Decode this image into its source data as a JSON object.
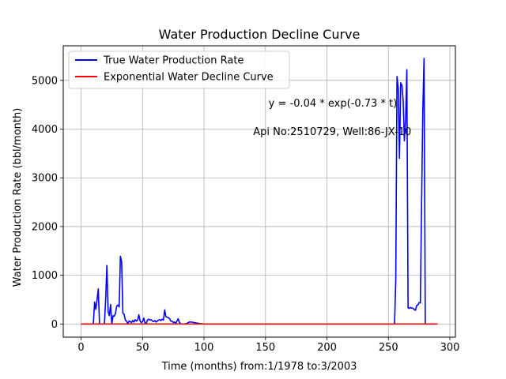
{
  "chart_data": {
    "type": "line",
    "title": "Water Production Decline Curve",
    "xlabel": "Time (months) from:1/1978 to:3/2003",
    "ylabel": "Water Production Rate (bbl/month)",
    "xlim": [
      -14.5,
      304.5
    ],
    "ylim": [
      -270,
      5710
    ],
    "xticks": [
      0,
      50,
      100,
      150,
      200,
      250,
      300
    ],
    "yticks": [
      0,
      1000,
      2000,
      3000,
      4000,
      5000
    ],
    "grid": true,
    "legend_position": "upper-left",
    "annotations": [
      {
        "text": "y = -0.04 * exp(-0.73 * t)",
        "x": 152.5,
        "y": 4460
      },
      {
        "text": "Api No:2510729, Well:86-JX-10",
        "x": 140,
        "y": 3880
      }
    ],
    "series": [
      {
        "name": "True Water Production Rate",
        "color": "#0000ff",
        "points": [
          [
            0,
            0
          ],
          [
            5,
            0
          ],
          [
            9,
            0
          ],
          [
            10,
            10
          ],
          [
            11,
            450
          ],
          [
            12,
            300
          ],
          [
            13,
            500
          ],
          [
            14,
            720
          ],
          [
            15,
            0
          ],
          [
            16,
            0
          ],
          [
            18,
            0
          ],
          [
            19,
            10
          ],
          [
            20,
            500
          ],
          [
            21,
            1200
          ],
          [
            22,
            250
          ],
          [
            23,
            170
          ],
          [
            24,
            400
          ],
          [
            25,
            0
          ],
          [
            26,
            170
          ],
          [
            27,
            160
          ],
          [
            28,
            220
          ],
          [
            29,
            370
          ],
          [
            30,
            390
          ],
          [
            31,
            350
          ],
          [
            32,
            1390
          ],
          [
            33,
            1280
          ],
          [
            34,
            220
          ],
          [
            35,
            200
          ],
          [
            36,
            80
          ],
          [
            37,
            60
          ],
          [
            38,
            0
          ],
          [
            39,
            60
          ],
          [
            40,
            50
          ],
          [
            41,
            30
          ],
          [
            42,
            70
          ],
          [
            43,
            40
          ],
          [
            44,
            90
          ],
          [
            45,
            60
          ],
          [
            46,
            80
          ],
          [
            47,
            190
          ],
          [
            48,
            60
          ],
          [
            49,
            30
          ],
          [
            50,
            50
          ],
          [
            51,
            120
          ],
          [
            52,
            20
          ],
          [
            53,
            10
          ],
          [
            54,
            80
          ],
          [
            55,
            100
          ],
          [
            56,
            80
          ],
          [
            57,
            90
          ],
          [
            58,
            60
          ],
          [
            59,
            50
          ],
          [
            60,
            70
          ],
          [
            61,
            40
          ],
          [
            62,
            60
          ],
          [
            63,
            80
          ],
          [
            64,
            90
          ],
          [
            65,
            70
          ],
          [
            66,
            100
          ],
          [
            67,
            80
          ],
          [
            68,
            290
          ],
          [
            69,
            150
          ],
          [
            70,
            140
          ],
          [
            71,
            130
          ],
          [
            72,
            110
          ],
          [
            73,
            60
          ],
          [
            74,
            60
          ],
          [
            75,
            30
          ],
          [
            76,
            40
          ],
          [
            77,
            10
          ],
          [
            78,
            60
          ],
          [
            79,
            110
          ],
          [
            80,
            30
          ],
          [
            81,
            10
          ],
          [
            82,
            0
          ],
          [
            84,
            0
          ],
          [
            86,
            10
          ],
          [
            88,
            40
          ],
          [
            90,
            40
          ],
          [
            92,
            30
          ],
          [
            94,
            20
          ],
          [
            96,
            10
          ],
          [
            100,
            0
          ],
          [
            150,
            0
          ],
          [
            200,
            0
          ],
          [
            254,
            0
          ],
          [
            255,
            0
          ],
          [
            256,
            900
          ],
          [
            257,
            5080
          ],
          [
            258,
            4850
          ],
          [
            259,
            3400
          ],
          [
            260,
            4950
          ],
          [
            261,
            4900
          ],
          [
            262,
            4600
          ],
          [
            263,
            3760
          ],
          [
            264,
            4200
          ],
          [
            265,
            5220
          ],
          [
            266,
            330
          ],
          [
            267,
            320
          ],
          [
            268,
            340
          ],
          [
            269,
            330
          ],
          [
            270,
            320
          ],
          [
            271,
            300
          ],
          [
            272,
            280
          ],
          [
            273,
            380
          ],
          [
            274,
            390
          ],
          [
            275,
            440
          ],
          [
            276,
            430
          ],
          [
            277,
            2500
          ],
          [
            278,
            4400
          ],
          [
            279,
            5450
          ],
          [
            280,
            0
          ],
          [
            285,
            0
          ],
          [
            289,
            0
          ]
        ]
      },
      {
        "name": "Exponential Water Decline Curve",
        "color": "#ff0000",
        "points": [
          [
            0,
            -0.04
          ],
          [
            1,
            -0.02
          ],
          [
            2,
            -0.01
          ],
          [
            5,
            0
          ],
          [
            290,
            0
          ]
        ]
      }
    ]
  }
}
